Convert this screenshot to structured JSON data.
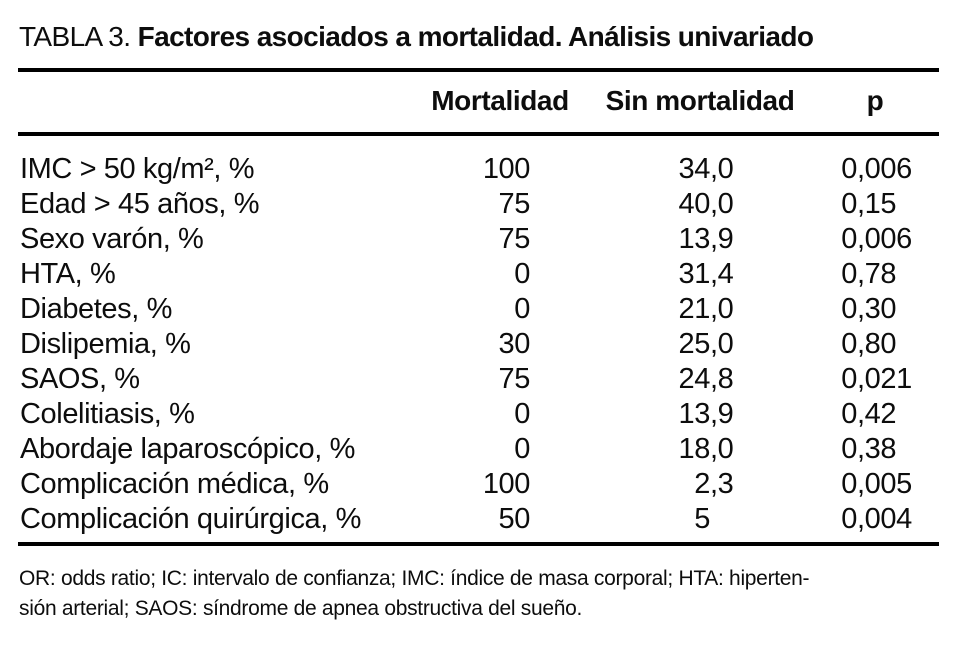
{
  "title": {
    "label": "TABLA 3.",
    "caption": "Factores asociados a mortalidad. Análisis univariado"
  },
  "table": {
    "headers": {
      "factor": "",
      "mortalidad": "Mortalidad",
      "sin_mortalidad": "Sin mortalidad",
      "p": "p"
    },
    "rows": [
      {
        "label": "IMC > 50 kg/m², %",
        "mortalidad": "100",
        "sin_mortalidad": "34,0",
        "p": "0,006"
      },
      {
        "label": "Edad > 45 años, %",
        "mortalidad": "75",
        "sin_mortalidad": "40,0",
        "p": "0,15"
      },
      {
        "label": "Sexo varón, %",
        "mortalidad": "75",
        "sin_mortalidad": "13,9",
        "p": "0,006"
      },
      {
        "label": "HTA, %",
        "mortalidad": "0",
        "sin_mortalidad": "31,4",
        "p": "0,78"
      },
      {
        "label": "Diabetes, %",
        "mortalidad": "0",
        "sin_mortalidad": "21,0",
        "p": "0,30"
      },
      {
        "label": "Dislipemia, %",
        "mortalidad": "30",
        "sin_mortalidad": "25,0",
        "p": "0,80"
      },
      {
        "label": "SAOS, %",
        "mortalidad": "75",
        "sin_mortalidad": "24,8",
        "p": "0,021"
      },
      {
        "label": "Colelitiasis, %",
        "mortalidad": "0",
        "sin_mortalidad": "13,9",
        "p": "0,42"
      },
      {
        "label": "Abordaje laparoscópico, %",
        "mortalidad": "0",
        "sin_mortalidad": "18,0",
        "p": "0,38"
      },
      {
        "label": "Complicación médica, %",
        "mortalidad": "100",
        "sin_mortalidad": "2,3",
        "p": "0,005"
      },
      {
        "label": "Complicación quirúrgica, %",
        "mortalidad": "50",
        "sin_mortalidad": "5",
        "p": "0,004"
      }
    ]
  },
  "footnote": {
    "line1": "OR: odds ratio; IC: intervalo de confianza; IMC: índice de masa corporal; HTA: hiperten-",
    "line2": "sión arterial; SAOS: síndrome de apnea obstructiva del sueño."
  },
  "colors": {
    "text": "#0d0d0d",
    "rule": "#000000",
    "background": "#ffffff"
  }
}
